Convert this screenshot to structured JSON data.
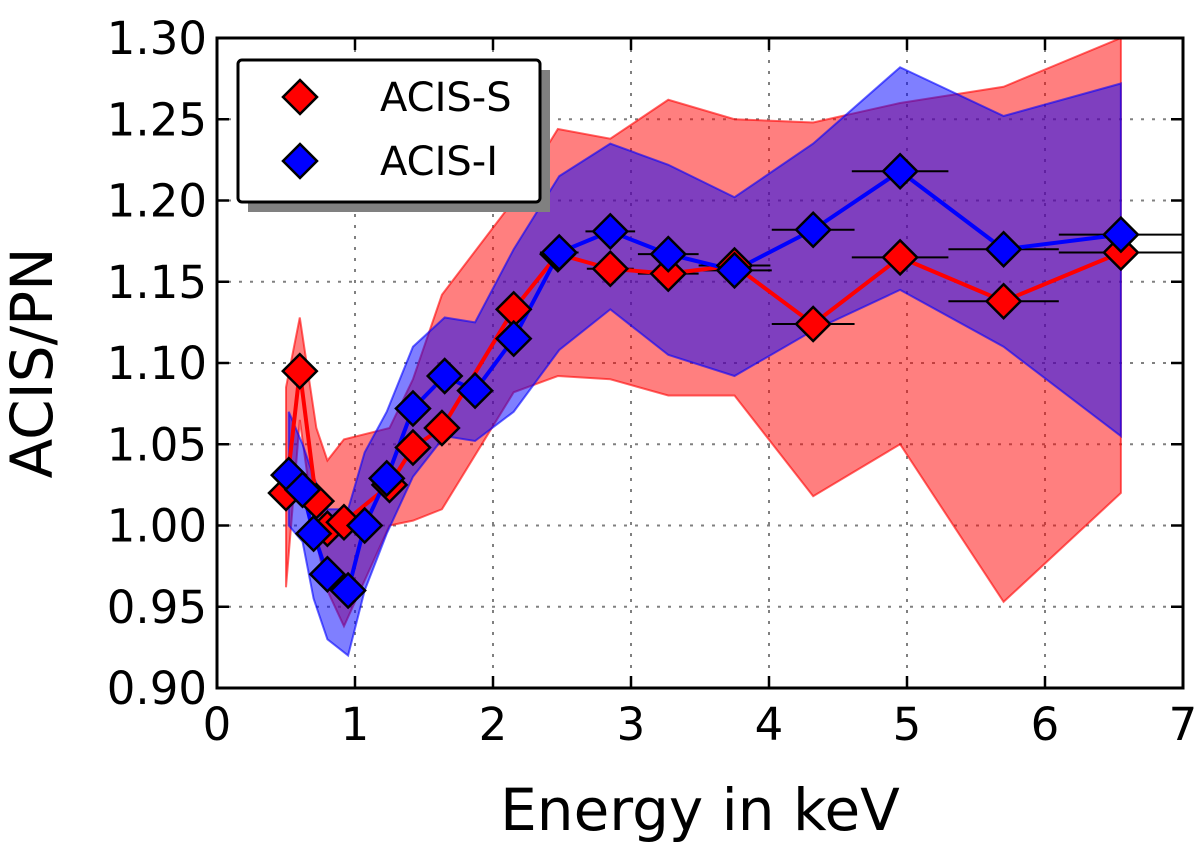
{
  "chart_data": {
    "type": "line",
    "xlabel": "Energy in keV",
    "ylabel": "ACIS/PN",
    "xlim": [
      0,
      7
    ],
    "ylim": [
      0.9,
      1.3
    ],
    "xticks": [
      0,
      1,
      2,
      3,
      4,
      5,
      6,
      7
    ],
    "xtick_labels": [
      "0",
      "1",
      "2",
      "3",
      "4",
      "5",
      "6",
      "7"
    ],
    "yticks": [
      0.9,
      0.95,
      1.0,
      1.05,
      1.1,
      1.15,
      1.2,
      1.25,
      1.3
    ],
    "ytick_labels": [
      "0.90",
      "0.95",
      "1.00",
      "1.05",
      "1.10",
      "1.15",
      "1.20",
      "1.25",
      "1.30"
    ],
    "grid": true,
    "legend_position": "top-left",
    "series": [
      {
        "name": "ACIS-S",
        "color": "#ff0000",
        "band_color": "#ff0000",
        "marker": "diamond",
        "x": [
          0.5,
          0.6,
          0.72,
          0.8,
          0.92,
          1.25,
          1.42,
          1.63,
          2.15,
          2.47,
          2.85,
          3.27,
          3.75,
          4.32,
          4.95,
          5.7,
          6.55
        ],
        "y": [
          1.02,
          1.095,
          1.015,
          0.998,
          1.002,
          1.025,
          1.048,
          1.06,
          1.133,
          1.167,
          1.158,
          1.155,
          1.16,
          1.124,
          1.165,
          1.138,
          1.168
        ],
        "xerr": [
          0.03,
          0.03,
          0.04,
          0.04,
          0.04,
          0.05,
          0.05,
          0.08,
          0.1,
          0.13,
          0.17,
          0.22,
          0.26,
          0.3,
          0.35,
          0.4,
          0.45
        ],
        "band_lower": [
          0.962,
          1.065,
          0.99,
          0.96,
          0.938,
          1.0,
          1.003,
          1.01,
          1.082,
          1.092,
          1.09,
          1.08,
          1.08,
          1.018,
          1.05,
          0.953,
          1.02
        ],
        "band_upper": [
          1.085,
          1.128,
          1.06,
          1.04,
          1.053,
          1.06,
          1.09,
          1.142,
          1.2,
          1.244,
          1.238,
          1.262,
          1.25,
          1.248,
          1.26,
          1.27,
          1.3
        ]
      },
      {
        "name": "ACIS-I",
        "color": "#0000ff",
        "band_color": "#0000ff",
        "marker": "diamond",
        "x": [
          0.52,
          0.62,
          0.7,
          0.8,
          0.95,
          1.07,
          1.23,
          1.42,
          1.65,
          1.87,
          2.15,
          2.48,
          2.85,
          3.27,
          3.75,
          4.32,
          4.95,
          5.7,
          6.55
        ],
        "y": [
          1.031,
          1.022,
          0.995,
          0.97,
          0.96,
          1.0,
          1.029,
          1.072,
          1.092,
          1.083,
          1.115,
          1.168,
          1.181,
          1.167,
          1.157,
          1.182,
          1.218,
          1.17,
          1.179
        ],
        "xerr": [
          0.03,
          0.03,
          0.04,
          0.04,
          0.05,
          0.06,
          0.06,
          0.08,
          0.1,
          0.1,
          0.12,
          0.14,
          0.18,
          0.22,
          0.27,
          0.3,
          0.35,
          0.4,
          0.45
        ],
        "band_lower": [
          1.0,
          0.99,
          0.955,
          0.93,
          0.92,
          0.96,
          0.995,
          1.03,
          1.055,
          1.052,
          1.07,
          1.108,
          1.133,
          1.105,
          1.092,
          1.12,
          1.145,
          1.11,
          1.055
        ],
        "band_upper": [
          1.07,
          1.05,
          1.03,
          1.01,
          1.01,
          1.045,
          1.07,
          1.11,
          1.128,
          1.125,
          1.17,
          1.215,
          1.235,
          1.222,
          1.202,
          1.235,
          1.282,
          1.252,
          1.272
        ]
      }
    ]
  }
}
